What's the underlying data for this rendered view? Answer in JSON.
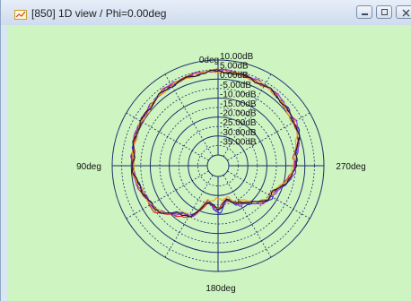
{
  "window": {
    "title": "[850] 1D view / Phi=0.00deg",
    "icon": "chart-window-icon"
  },
  "controls": {
    "minimize_icon": "minimize-icon",
    "maximize_icon": "maximize-icon",
    "close_icon": "close-icon"
  },
  "polar": {
    "background_color": "#cef4c2",
    "grid_color": "#1e2f6a",
    "angle_labels": {
      "top": "0deg",
      "left": "90deg",
      "right": "270deg",
      "bottom": "180deg"
    },
    "ring_labels": [
      "10.00dB",
      "5.00dB",
      "0.00dB",
      "-5.00dB",
      "-10.00dB",
      "-15.00dB",
      "-20.00dB",
      "-25.00dB",
      "-30.00dB",
      "-35.00dB"
    ]
  },
  "chart_data": {
    "type": "line",
    "title": "",
    "angle_ticks": [
      "0deg",
      "90deg",
      "180deg",
      "270deg"
    ],
    "r_ticks": [
      "10.00dB",
      "5.00dB",
      "0.00dB",
      "-5.00dB",
      "-10.00dB",
      "-15.00dB",
      "-20.00dB",
      "-25.00dB",
      "-30.00dB",
      "-35.00dB"
    ],
    "r_range_dB": [
      -40,
      10
    ],
    "grid": true,
    "legend": "none",
    "series": [
      {
        "color": "#1f2bd6",
        "angles_deg": [
          0,
          30,
          60,
          90,
          120,
          150,
          165,
          180,
          195,
          210,
          240,
          270,
          300,
          330
        ],
        "values_dB": [
          4,
          3,
          1,
          -1,
          -5,
          -16,
          -26,
          -21,
          -27,
          -22,
          -13,
          -5,
          1,
          3
        ]
      },
      {
        "color": "#e0241b",
        "angles_deg": [
          0,
          30,
          60,
          90,
          120,
          150,
          165,
          180,
          195,
          210,
          240,
          270,
          300,
          330
        ],
        "values_dB": [
          4.5,
          3.5,
          1,
          -1,
          -4,
          -14,
          -25,
          -24,
          -27,
          -23,
          -14,
          -6,
          0.5,
          3
        ]
      },
      {
        "color": "#9a2ad0",
        "angles_deg": [
          0,
          30,
          60,
          90,
          120,
          150,
          165,
          180,
          195,
          210,
          240,
          270,
          300,
          330
        ],
        "values_dB": [
          4.5,
          3.5,
          1,
          -0.5,
          -5,
          -15,
          -26,
          -22,
          -27,
          -22,
          -13,
          -5,
          1,
          3.5
        ]
      },
      {
        "color": "#f0a21a",
        "angles_deg": [
          0,
          30,
          60,
          90,
          120,
          150,
          165,
          180,
          195,
          210,
          240,
          270,
          300,
          330
        ],
        "values_dB": [
          4,
          3,
          0.5,
          -1,
          -5,
          -16,
          -27,
          -28,
          -28,
          -24,
          -14,
          -6,
          0,
          3
        ]
      },
      {
        "color": "#1a1a1a",
        "angles_deg": [
          0,
          30,
          60,
          90,
          120,
          150,
          165,
          180,
          195,
          210,
          240,
          270,
          300,
          330
        ],
        "values_dB": [
          4,
          3,
          1,
          -1,
          -5,
          -15,
          -26,
          -23,
          -27,
          -23,
          -14,
          -5,
          0.5,
          3
        ]
      }
    ]
  }
}
